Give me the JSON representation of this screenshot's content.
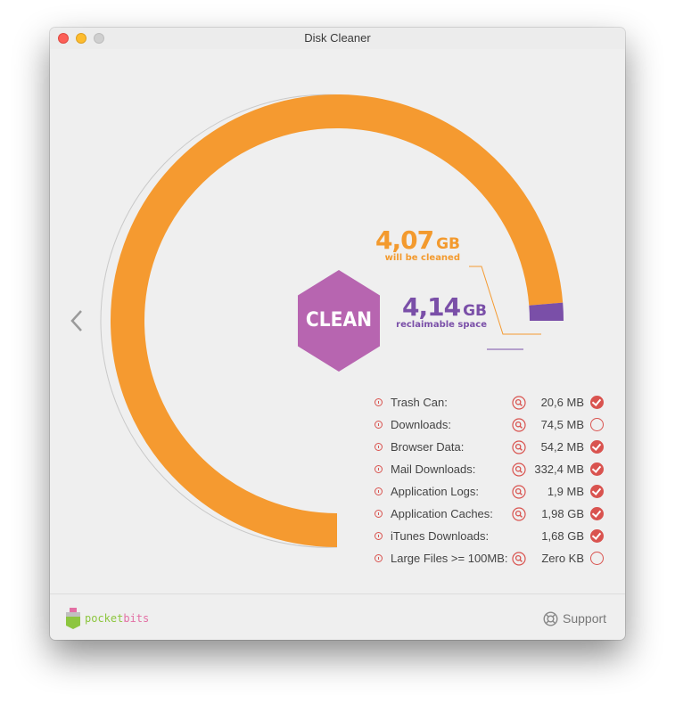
{
  "window": {
    "title": "Disk Cleaner"
  },
  "gauge": {
    "cleaned_value": "4,07",
    "cleaned_unit": "GB",
    "cleaned_caption": "will be cleaned",
    "reclaim_value": "4,14",
    "reclaim_unit": "GB",
    "reclaim_caption": "reclaimable space",
    "cleaned_fraction": 0.983,
    "colors": {
      "cleaned": "#f59a30",
      "reclaimable": "#7a4fa8",
      "button": "#b765b0"
    }
  },
  "clean_button": {
    "label": "CLEAN"
  },
  "items": [
    {
      "name": "Trash Can:",
      "size": "20,6 MB",
      "checked": true,
      "searchable": true
    },
    {
      "name": "Downloads:",
      "size": "74,5 MB",
      "checked": false,
      "searchable": true
    },
    {
      "name": "Browser Data:",
      "size": "54,2 MB",
      "checked": true,
      "searchable": true
    },
    {
      "name": "Mail Downloads:",
      "size": "332,4 MB",
      "checked": true,
      "searchable": true
    },
    {
      "name": "Application Logs:",
      "size": "1,9 MB",
      "checked": true,
      "searchable": true
    },
    {
      "name": "Application Caches:",
      "size": "1,98 GB",
      "checked": true,
      "searchable": true
    },
    {
      "name": "iTunes Downloads:",
      "size": "1,68 GB",
      "checked": true,
      "searchable": false
    },
    {
      "name": "Large Files >= 100MB:",
      "size": "Zero KB",
      "checked": false,
      "searchable": true
    }
  ],
  "footer": {
    "logo_part1": "pocket",
    "logo_part2": "bits",
    "support_label": "Support"
  }
}
